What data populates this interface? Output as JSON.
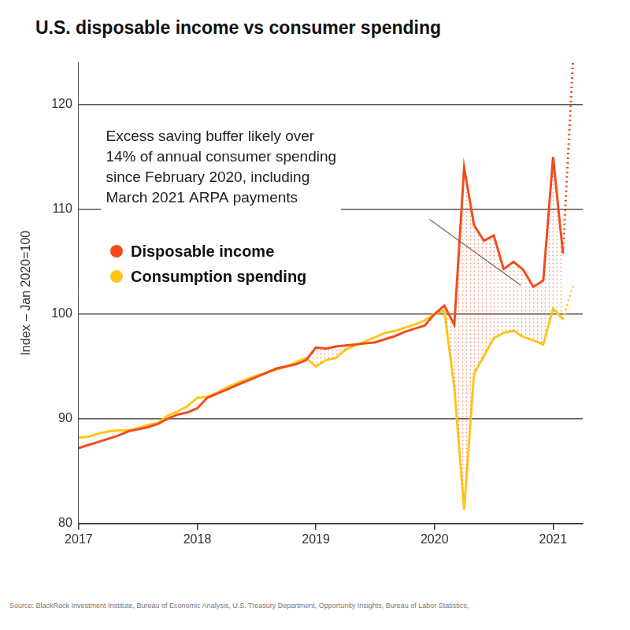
{
  "chart_data": {
    "type": "line",
    "title": "U.S. disposable income vs consumer spending",
    "y_label": "Index – Jan 2020=100",
    "annotation": [
      "Excess saving buffer likely over",
      "14% of annual consumer spending",
      "since February 2020, including",
      "March 2021 ARPA payments"
    ],
    "source": "Source: BlackRock Investment Institute, Bureau of Economic Analysis, U.S. Treasury Department, Opportunity Insights, Bureau of Labor Statistics,",
    "x": [
      2017.0,
      2017.083,
      2017.167,
      2017.25,
      2017.333,
      2017.417,
      2017.5,
      2017.583,
      2017.667,
      2017.75,
      2017.833,
      2017.917,
      2018.0,
      2018.083,
      2018.167,
      2018.25,
      2018.333,
      2018.417,
      2018.5,
      2018.583,
      2018.667,
      2018.75,
      2018.833,
      2018.917,
      2019.0,
      2019.083,
      2019.167,
      2019.25,
      2019.333,
      2019.417,
      2019.5,
      2019.583,
      2019.667,
      2019.75,
      2019.833,
      2019.917,
      2020.0,
      2020.083,
      2020.167,
      2020.25,
      2020.333,
      2020.417,
      2020.5,
      2020.583,
      2020.667,
      2020.75,
      2020.833,
      2020.917,
      2021.0,
      2021.083,
      2021.167
    ],
    "series": [
      {
        "name": "Disposable income",
        "color": "#f24c1d",
        "line_style": "solid",
        "values": [
          87.2,
          87.5,
          87.8,
          88.1,
          88.4,
          88.8,
          89.0,
          89.2,
          89.5,
          90.0,
          90.4,
          90.6,
          91.0,
          92.0,
          92.4,
          92.8,
          93.2,
          93.6,
          94.0,
          94.4,
          94.8,
          95.0,
          95.2,
          95.6,
          96.8,
          96.7,
          96.9,
          97.0,
          97.1,
          97.2,
          97.3,
          97.6,
          97.9,
          98.3,
          98.6,
          98.9,
          100.0,
          100.8,
          99.0,
          114.0,
          108.5,
          107.0,
          107.5,
          104.3,
          105.0,
          104.2,
          102.6,
          103.2,
          115.0,
          105.8,
          null
        ]
      },
      {
        "name": "Consumption spending",
        "color": "#ffc61a",
        "line_style": "solid",
        "values": [
          88.2,
          88.3,
          88.6,
          88.8,
          88.9,
          88.9,
          89.1,
          89.4,
          89.6,
          90.3,
          90.7,
          91.2,
          92.0,
          92.1,
          92.5,
          93.0,
          93.4,
          93.8,
          94.1,
          94.4,
          94.7,
          95.0,
          95.4,
          95.8,
          95.0,
          95.6,
          95.8,
          96.6,
          97.0,
          97.4,
          97.8,
          98.2,
          98.4,
          98.7,
          99.0,
          99.4,
          100.0,
          100.3,
          93.0,
          81.3,
          94.3,
          96.0,
          97.7,
          98.2,
          98.4,
          97.8,
          97.5,
          97.1,
          100.5,
          99.5,
          null
        ]
      },
      {
        "name": "Disposable income",
        "color": "#f24c1d",
        "line_style": "dotted",
        "values": [
          null,
          null,
          null,
          null,
          null,
          null,
          null,
          null,
          null,
          null,
          null,
          null,
          null,
          null,
          null,
          null,
          null,
          null,
          null,
          null,
          null,
          null,
          null,
          null,
          null,
          null,
          null,
          null,
          null,
          null,
          null,
          null,
          null,
          null,
          null,
          null,
          null,
          null,
          null,
          null,
          null,
          null,
          null,
          null,
          null,
          null,
          null,
          null,
          null,
          105.8,
          124.0
        ]
      },
      {
        "name": "Consumption spending",
        "color": "#ffc61a",
        "line_style": "dotted",
        "values": [
          null,
          null,
          null,
          null,
          null,
          null,
          null,
          null,
          null,
          null,
          null,
          null,
          null,
          null,
          null,
          null,
          null,
          null,
          null,
          null,
          null,
          null,
          null,
          null,
          null,
          null,
          null,
          null,
          null,
          null,
          null,
          null,
          null,
          null,
          null,
          null,
          null,
          null,
          null,
          null,
          null,
          null,
          null,
          null,
          null,
          null,
          null,
          null,
          null,
          99.5,
          102.7
        ]
      }
    ],
    "xlim": [
      2017,
      2021.25
    ],
    "xticks": [
      2017,
      2018,
      2019,
      2020,
      2021
    ],
    "ylim": [
      80,
      124
    ],
    "yticks": [
      80,
      90,
      100,
      110,
      120
    ],
    "grid": true,
    "legend": "left"
  }
}
